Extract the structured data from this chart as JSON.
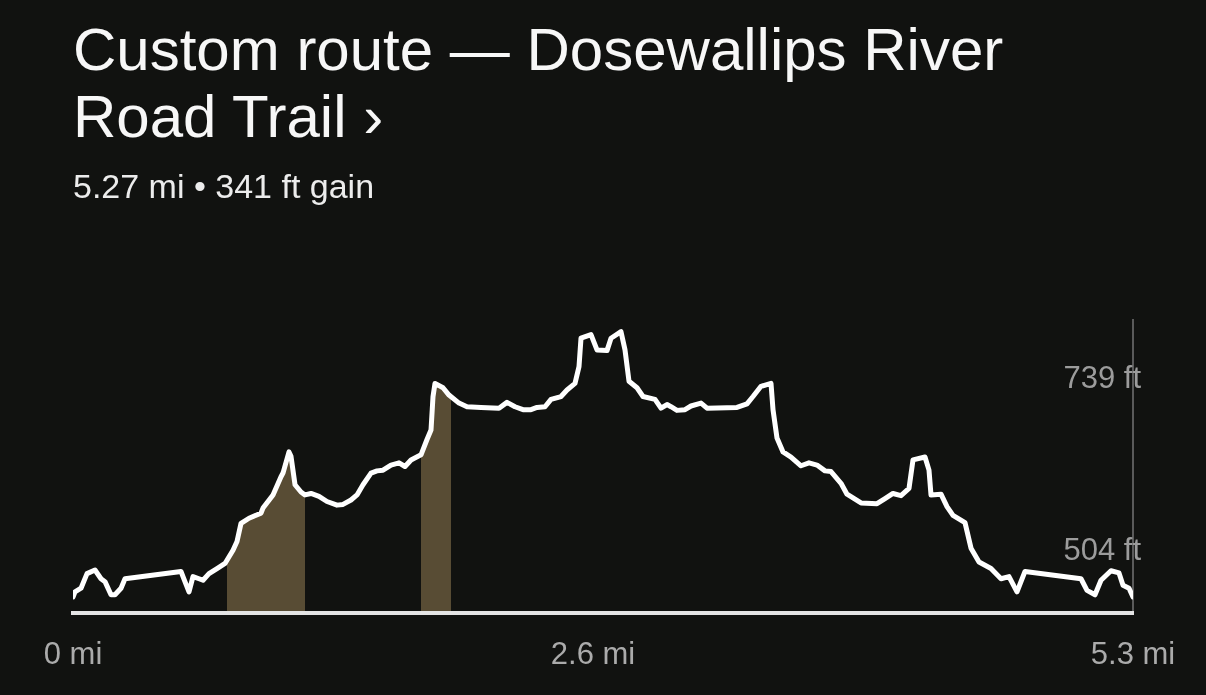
{
  "chart_data": {
    "type": "line",
    "title": "Custom route — Dosewallips River Road Trail ›",
    "subtitle": "5.27 mi • 341 ft gain",
    "series": [
      {
        "type": "line",
        "color": "#ffffff",
        "x": [
          0,
          0.01,
          0.04,
          0.07,
          0.11,
          0.14,
          0.16,
          0.19,
          0.21,
          0.24,
          0.26,
          0.54,
          0.55,
          0.58,
          0.6,
          0.63,
          0.65,
          0.68,
          0.72,
          0.76,
          0.8,
          0.82,
          0.84,
          0.88,
          0.94,
          0.95,
          1.0,
          1.04,
          1.05,
          1.08,
          1.09,
          1.11,
          1.14,
          1.16,
          1.19,
          1.23,
          1.27,
          1.32,
          1.35,
          1.39,
          1.42,
          1.45,
          1.49,
          1.52,
          1.55,
          1.59,
          1.63,
          1.66,
          1.69,
          1.74,
          1.77,
          1.79,
          1.8,
          1.81,
          1.85,
          1.88,
          1.93,
          1.97,
          2.04,
          2.13,
          2.17,
          2.21,
          2.25,
          2.29,
          2.32,
          2.36,
          2.39,
          2.44,
          2.47,
          2.51,
          2.53,
          2.54,
          2.59,
          2.62,
          2.67,
          2.69,
          2.74,
          2.76,
          2.78,
          2.82,
          2.85,
          2.91,
          2.94,
          2.97,
          2.99,
          3.02,
          3.06,
          3.09,
          3.14,
          3.17,
          3.32,
          3.37,
          3.4,
          3.44,
          3.49,
          3.5,
          3.52,
          3.55,
          3.59,
          3.64,
          3.68,
          3.72,
          3.76,
          3.79,
          3.84,
          3.87,
          3.94,
          4.02,
          4.06,
          4.1,
          4.14,
          4.18,
          4.2,
          4.26,
          4.28,
          4.29,
          4.34,
          4.37,
          4.4,
          4.46,
          4.49,
          4.53,
          4.59,
          4.64,
          4.68,
          4.72,
          4.76,
          5.04,
          5.07,
          5.11,
          5.14,
          5.19,
          5.23,
          5.25,
          5.28,
          5.3
        ],
        "values": [
          441,
          448,
          453,
          473,
          478,
          466,
          462,
          444,
          444,
          453,
          466,
          476,
          469,
          448,
          469,
          466,
          464,
          473,
          480,
          487,
          505,
          517,
          542,
          549,
          556,
          563,
          581,
          606,
          611,
          640,
          634,
          595,
          585,
          581,
          583,
          579,
          572,
          567,
          568,
          574,
          581,
          595,
          611,
          614,
          615,
          622,
          625,
          620,
          629,
          636,
          657,
          670,
          716,
          734,
          728,
          718,
          707,
          702,
          701,
          700,
          708,
          702,
          698,
          698,
          701,
          702,
          712,
          716,
          725,
          734,
          757,
          796,
          801,
          780,
          779,
          796,
          805,
          780,
          737,
          728,
          716,
          712,
          700,
          705,
          702,
          697,
          698,
          703,
          707,
          700,
          701,
          706,
          716,
          730,
          734,
          698,
          659,
          640,
          633,
          621,
          625,
          622,
          614,
          613,
          597,
          582,
          570,
          569,
          576,
          583,
          580,
          590,
          629,
          633,
          615,
          581,
          582,
          565,
          553,
          543,
          508,
          489,
          480,
          466,
          469,
          448,
          476,
          466,
          450,
          444,
          464,
          477,
          474,
          457,
          453,
          441
        ]
      },
      {
        "type": "area",
        "color": "#584c34",
        "x": [
          0.77,
          0.8,
          0.82,
          0.84,
          0.88,
          0.94,
          0.95,
          1.0,
          1.04,
          1.05,
          1.08,
          1.09,
          1.11,
          1.14,
          1.16
        ],
        "values": [
          489,
          505,
          517,
          542,
          549,
          556,
          563,
          581,
          606,
          611,
          640,
          634,
          595,
          585,
          581
        ]
      },
      {
        "type": "area",
        "color": "#584c34",
        "x": [
          1.74,
          1.77,
          1.79,
          1.8,
          1.81,
          1.85,
          1.88,
          1.89
        ],
        "values": [
          636,
          657,
          670,
          716,
          734,
          728,
          718,
          715
        ]
      }
    ],
    "xlim": [
      0,
      5.3
    ],
    "xticks": [
      {
        "value": 0,
        "label": "0 mi"
      },
      {
        "value": 2.6,
        "label": "2.6 mi"
      },
      {
        "value": 5.3,
        "label": "5.3 mi"
      }
    ],
    "ylim": [
      419,
      821
    ],
    "yticks": [
      {
        "value": 504,
        "label": "504 ft"
      },
      {
        "value": 739,
        "label": "739 ft"
      }
    ],
    "marker": "none",
    "line_style": "solid"
  }
}
